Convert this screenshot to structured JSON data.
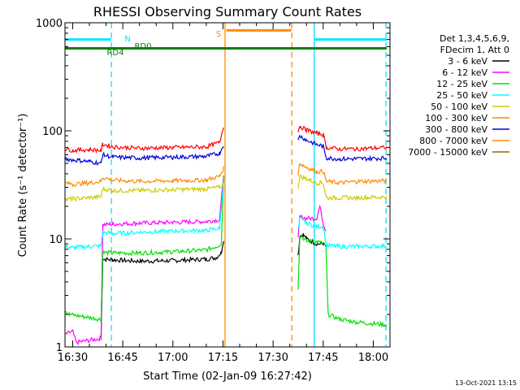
{
  "chart_data": {
    "type": "line",
    "title": "RHESSI Observing Summary Count Rates",
    "xlabel": "Start Time (02-Jan-09 16:27:42)",
    "ylabel": "Count Rate (s⁻¹ detector⁻¹)",
    "y_scale": "log",
    "xlim_minutes": [
      -2.3,
      95
    ],
    "ylim": [
      1,
      1000
    ],
    "x_ticks": [
      {
        "label": "16:30",
        "min": 0
      },
      {
        "label": "16:45",
        "min": 15
      },
      {
        "label": "17:00",
        "min": 30
      },
      {
        "label": "17:15",
        "min": 45
      },
      {
        "label": "17:30",
        "min": 60
      },
      {
        "label": "17:45",
        "min": 75
      },
      {
        "label": "18:00",
        "min": 90
      }
    ],
    "y_ticks": [
      {
        "label": "1",
        "value": 1
      },
      {
        "label": "10",
        "value": 10
      },
      {
        "label": "100",
        "value": 100
      },
      {
        "label": "1000",
        "value": 1000
      }
    ],
    "legend_header": [
      "Det 1,3,4,5,6,9,",
      "FDecim 1, Att 0"
    ],
    "legend_position": "right",
    "footer": "13-Oct-2021 13:15",
    "flags": [
      {
        "label": "N",
        "color": "#00e5ff",
        "y": 700,
        "segments": [
          [
            -2.3,
            11.5
          ],
          [
            72.5,
            94
          ]
        ]
      },
      {
        "label": "S",
        "color": "#ff8c00",
        "y": 850,
        "segments": [
          [
            46,
            65.5
          ]
        ]
      },
      {
        "label": "RD0",
        "color": "#0d7d0d",
        "y": 580,
        "segments": [
          [
            -2.3,
            94
          ]
        ]
      },
      {
        "label": "RD4",
        "color": "#0d7d0d",
        "y": 560,
        "segments": []
      }
    ],
    "vertical_markers": [
      {
        "min": 11.6,
        "color": "#00e5ff",
        "style": "dashed"
      },
      {
        "min": 45.6,
        "color": "#ff8c00",
        "style": "solid"
      },
      {
        "min": 65.6,
        "color": "#ff8c00",
        "style": "dashed"
      },
      {
        "min": 72.3,
        "color": "#00e5ff",
        "style": "solid"
      },
      {
        "min": 93.8,
        "color": "#00e5ff",
        "style": "dashed"
      }
    ],
    "series": [
      {
        "name": "3 - 6 keV",
        "color": "#000000",
        "segments": [
          {
            "x": [
              8.5,
              9,
              12,
              20,
              30,
              40,
              43,
              44.5,
              45.2
            ],
            "y": [
              1.2,
              6.5,
              6.4,
              6.2,
              6.3,
              6.5,
              6.7,
              7.5,
              10
            ]
          },
          {
            "x": [
              67.5,
              68,
              69,
              70,
              73,
              75,
              75.8
            ],
            "y": [
              7,
              10.5,
              11,
              10,
              9,
              9,
              8.5
            ]
          }
        ]
      },
      {
        "name": "6 - 12 keV",
        "color": "#ff00ff",
        "segments": [
          {
            "x": [
              -2.3,
              0,
              1,
              8.5,
              9,
              12,
              20,
              30,
              40,
              44,
              45.2
            ],
            "y": [
              1.3,
              1.4,
              1.1,
              1.2,
              13.5,
              13.7,
              14,
              14.2,
              14.5,
              15,
              40
            ]
          },
          {
            "x": [
              67.5,
              68,
              70,
              73,
              74,
              75,
              75.8
            ],
            "y": [
              10,
              16,
              15.5,
              15.5,
              20,
              14,
              12
            ]
          }
        ]
      },
      {
        "name": "12 - 25 keV",
        "color": "#00e000",
        "segments": [
          {
            "x": [
              -2.3,
              -1,
              8.5,
              9,
              12,
              20,
              30,
              40,
              43,
              44.5,
              45.2
            ],
            "y": [
              2.2,
              2,
              1.8,
              7.5,
              7.4,
              7.4,
              7.6,
              7.9,
              8.5,
              9,
              38
            ]
          },
          {
            "x": [
              67.5,
              68,
              70,
              73,
              75,
              75.8,
              76.5,
              80,
              85,
              94
            ],
            "y": [
              3.5,
              11,
              9.5,
              9.5,
              9,
              8.5,
              2,
              1.8,
              1.7,
              1.6
            ]
          }
        ]
      },
      {
        "name": "25 - 50 keV",
        "color": "#00ffff",
        "segments": [
          {
            "x": [
              -2.3,
              0,
              5,
              8.5,
              9,
              12,
              20,
              30,
              40,
              44,
              45.2
            ],
            "y": [
              8.5,
              8.3,
              8.5,
              8.6,
              11.5,
              11.2,
              11.5,
              11.8,
              12,
              12.5,
              35
            ]
          },
          {
            "x": [
              67.5,
              68,
              70,
              73,
              75,
              76,
              80,
              85,
              94
            ],
            "y": [
              12,
              15.5,
              14,
              13,
              13,
              8.7,
              8.5,
              8.5,
              8.6
            ]
          }
        ]
      },
      {
        "name": "50 - 100 keV",
        "color": "#cccc00",
        "segments": [
          {
            "x": [
              -2.3,
              0,
              5,
              8.5,
              9,
              12,
              20,
              30,
              40,
              44,
              45.2
            ],
            "y": [
              23,
              23.5,
              24,
              24.5,
              29,
              28,
              28,
              28.5,
              29,
              30,
              32
            ]
          },
          {
            "x": [
              67.5,
              68,
              70,
              73,
              75,
              76,
              80,
              85,
              94
            ],
            "y": [
              30,
              38,
              36,
              33,
              33,
              24,
              24,
              24,
              24.5
            ]
          }
        ]
      },
      {
        "name": "100 - 300 keV",
        "color": "#ff8c00",
        "segments": [
          {
            "x": [
              -2.3,
              0,
              5,
              8.5,
              9,
              12,
              20,
              30,
              40,
              44,
              45.2
            ],
            "y": [
              33,
              32,
              33,
              34,
              37,
              35,
              34,
              34.5,
              35,
              38,
              45
            ]
          },
          {
            "x": [
              67.5,
              68,
              70,
              73,
              75,
              76,
              80,
              85,
              94
            ],
            "y": [
              40,
              50,
              46,
              42,
              42,
              34,
              33,
              34,
              34.5
            ]
          }
        ]
      },
      {
        "name": "300 - 800 keV",
        "color": "#0000dd",
        "segments": [
          {
            "x": [
              -2.3,
              0,
              5,
              8.5,
              9,
              12,
              20,
              30,
              40,
              44,
              45.2
            ],
            "y": [
              55,
              54,
              52,
              50,
              60,
              57,
              56,
              57,
              58,
              62,
              75
            ]
          },
          {
            "x": [
              67.5,
              68,
              70,
              73,
              75,
              76,
              80,
              85,
              94
            ],
            "y": [
              80,
              90,
              82,
              75,
              72,
              56,
              55,
              55,
              56
            ]
          }
        ]
      },
      {
        "name": "800 - 7000 keV",
        "color": "#ff8c00",
        "segments": []
      },
      {
        "name": "7000 - 15000 keV",
        "color": "#996600",
        "segments": []
      }
    ],
    "overlay_series": [
      {
        "color": "#ff0000",
        "segments": [
          {
            "x": [
              -2.3,
              0,
              5,
              8.5,
              9,
              12,
              20,
              30,
              40,
              44,
              45.2
            ],
            "y": [
              68,
              66,
              67,
              66,
              75,
              71,
              69,
              70,
              71,
              78,
              112
            ]
          },
          {
            "x": [
              67.5,
              68,
              70,
              73,
              75,
              76,
              80,
              85,
              94
            ],
            "y": [
              100,
              110,
              102,
              95,
              92,
              70,
              68,
              68,
              70
            ]
          }
        ]
      }
    ]
  }
}
